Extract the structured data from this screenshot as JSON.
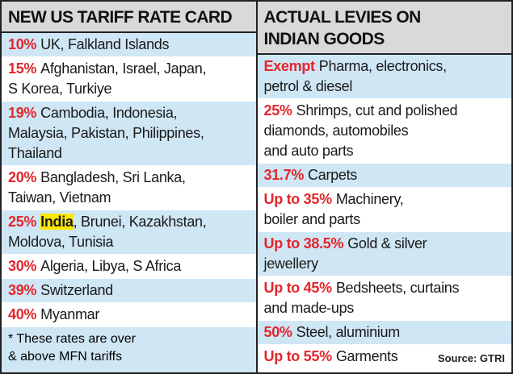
{
  "left": {
    "header": "NEW US TARIFF RATE CARD",
    "rows": [
      {
        "rate": "10%",
        "lines": [
          "UK, Falkland Islands"
        ]
      },
      {
        "rate": "15%",
        "lines": [
          "Afghanistan, Israel, Japan,",
          "S Korea, Turkiye"
        ]
      },
      {
        "rate": "19%",
        "lines": [
          "Cambodia, Indonesia,",
          "Malaysia, Pakistan, Philippines,",
          "Thailand"
        ]
      },
      {
        "rate": "20%",
        "lines": [
          "Bangladesh, Sri Lanka,",
          "Taiwan, Vietnam"
        ]
      },
      {
        "rate": "25%",
        "highlight": "India",
        "lines": [
          ", Brunei, Kazakhstan,",
          "Moldova, Tunisia"
        ]
      },
      {
        "rate": "30%",
        "lines": [
          "Algeria, Libya, S Africa"
        ]
      },
      {
        "rate": "39%",
        "lines": [
          "Switzerland"
        ]
      },
      {
        "rate": "40%",
        "lines": [
          "Myanmar"
        ]
      }
    ],
    "footnote": [
      "* These rates are over",
      "& above MFN tariffs"
    ]
  },
  "right": {
    "header": [
      "ACTUAL LEVIES ON",
      "INDIAN GOODS"
    ],
    "rows": [
      {
        "rate": "Exempt",
        "lines": [
          "Pharma, electronics,",
          "petrol & diesel"
        ]
      },
      {
        "rate": "25%",
        "lines": [
          "Shrimps, cut and polished",
          "diamonds, automobiles",
          "and auto parts"
        ]
      },
      {
        "rate": "31.7%",
        "lines": [
          "Carpets"
        ]
      },
      {
        "rate": "Up to 35%",
        "lines": [
          "Machinery,",
          "boiler and parts"
        ]
      },
      {
        "rate": "Up to 38.5%",
        "lines": [
          "Gold & silver",
          "jewellery"
        ]
      },
      {
        "rate": "Up to 45%",
        "lines": [
          "Bedsheets, curtains",
          "and made-ups"
        ]
      },
      {
        "rate": "50%",
        "lines": [
          "Steel, aluminium"
        ]
      },
      {
        "rate": "Up to 55%",
        "lines": [
          "Garments"
        ]
      }
    ],
    "source": "Source: GTRI"
  }
}
